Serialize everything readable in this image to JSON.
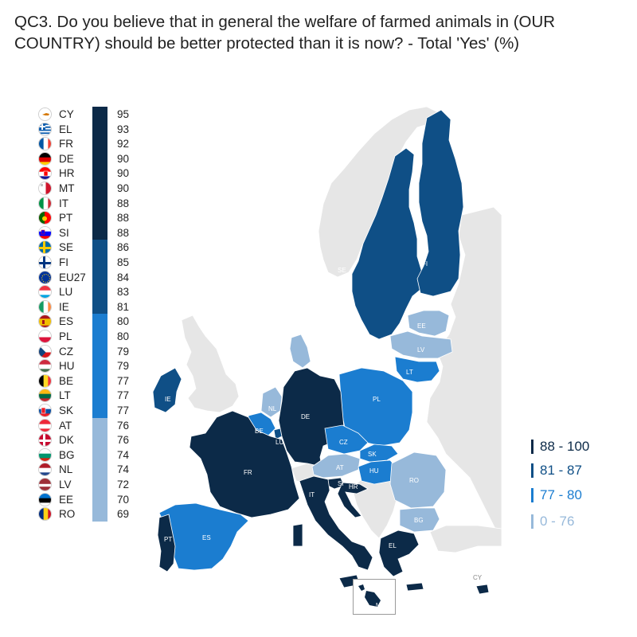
{
  "title": "QC3. Do you believe that in general the welfare of farmed animals in (OUR COUNTRY) should be better protected than it is now? - Total 'Yes' (%)",
  "colors": {
    "c88_100": "#0c2a48",
    "c81_87": "#0f4f86",
    "c77_80": "#1b7dd0",
    "c0_76": "#97b9da",
    "nodata": "#e6e6e6"
  },
  "chart_data": {
    "type": "table",
    "countries": [
      {
        "code": "CY",
        "value": 95,
        "band": "c88_100",
        "flag": "cy-flag-icon"
      },
      {
        "code": "EL",
        "value": 93,
        "band": "c88_100",
        "flag": "el-flag-icon"
      },
      {
        "code": "FR",
        "value": 92,
        "band": "c88_100",
        "flag": "fr-flag-icon"
      },
      {
        "code": "DE",
        "value": 90,
        "band": "c88_100",
        "flag": "de-flag-icon"
      },
      {
        "code": "HR",
        "value": 90,
        "band": "c88_100",
        "flag": "hr-flag-icon"
      },
      {
        "code": "MT",
        "value": 90,
        "band": "c88_100",
        "flag": "mt-flag-icon"
      },
      {
        "code": "IT",
        "value": 88,
        "band": "c88_100",
        "flag": "it-flag-icon"
      },
      {
        "code": "PT",
        "value": 88,
        "band": "c88_100",
        "flag": "pt-flag-icon"
      },
      {
        "code": "SI",
        "value": 88,
        "band": "c88_100",
        "flag": "si-flag-icon"
      },
      {
        "code": "SE",
        "value": 86,
        "band": "c81_87",
        "flag": "se-flag-icon"
      },
      {
        "code": "FI",
        "value": 85,
        "band": "c81_87",
        "flag": "fi-flag-icon"
      },
      {
        "code": "EU27",
        "value": 84,
        "band": "c81_87",
        "flag": "eu-flag-icon"
      },
      {
        "code": "LU",
        "value": 83,
        "band": "c81_87",
        "flag": "lu-flag-icon"
      },
      {
        "code": "IE",
        "value": 81,
        "band": "c81_87",
        "flag": "ie-flag-icon"
      },
      {
        "code": "ES",
        "value": 80,
        "band": "c77_80",
        "flag": "es-flag-icon"
      },
      {
        "code": "PL",
        "value": 80,
        "band": "c77_80",
        "flag": "pl-flag-icon"
      },
      {
        "code": "CZ",
        "value": 79,
        "band": "c77_80",
        "flag": "cz-flag-icon"
      },
      {
        "code": "HU",
        "value": 79,
        "band": "c77_80",
        "flag": "hu-flag-icon"
      },
      {
        "code": "BE",
        "value": 77,
        "band": "c77_80",
        "flag": "be-flag-icon"
      },
      {
        "code": "LT",
        "value": 77,
        "band": "c77_80",
        "flag": "lt-flag-icon"
      },
      {
        "code": "SK",
        "value": 77,
        "band": "c77_80",
        "flag": "sk-flag-icon"
      },
      {
        "code": "AT",
        "value": 76,
        "band": "c0_76",
        "flag": "at-flag-icon"
      },
      {
        "code": "DK",
        "value": 76,
        "band": "c0_76",
        "flag": "dk-flag-icon"
      },
      {
        "code": "BG",
        "value": 74,
        "band": "c0_76",
        "flag": "bg-flag-icon"
      },
      {
        "code": "NL",
        "value": 74,
        "band": "c0_76",
        "flag": "nl-flag-icon"
      },
      {
        "code": "LV",
        "value": 72,
        "band": "c0_76",
        "flag": "lv-flag-icon"
      },
      {
        "code": "EE",
        "value": 70,
        "band": "c0_76",
        "flag": "ee-flag-icon"
      },
      {
        "code": "RO",
        "value": 69,
        "band": "c0_76",
        "flag": "ro-flag-icon"
      }
    ],
    "bands": [
      {
        "label": "88 - 100",
        "band": "c88_100"
      },
      {
        "label": "81 - 87",
        "band": "c81_87"
      },
      {
        "label": "77 - 80",
        "band": "c77_80"
      },
      {
        "label": "0 - 76",
        "band": "c0_76"
      }
    ]
  },
  "map": {
    "labels": {
      "SE": "SE",
      "FI": "FI",
      "EE": "EE",
      "LV": "LV",
      "LT": "LT",
      "PL": "PL",
      "IE": "IE",
      "NL": "NL",
      "BE": "BE",
      "LU": "LU",
      "DE": "DE",
      "CZ": "CZ",
      "SK": "SK",
      "AT": "AT",
      "HU": "HU",
      "RO": "RO",
      "FR": "FR",
      "SI": "SI",
      "HR": "HR",
      "IT": "IT",
      "BG": "BG",
      "ES": "ES",
      "PT": "PT",
      "EL": "EL",
      "CY": "CY",
      "MT": "MT"
    }
  }
}
